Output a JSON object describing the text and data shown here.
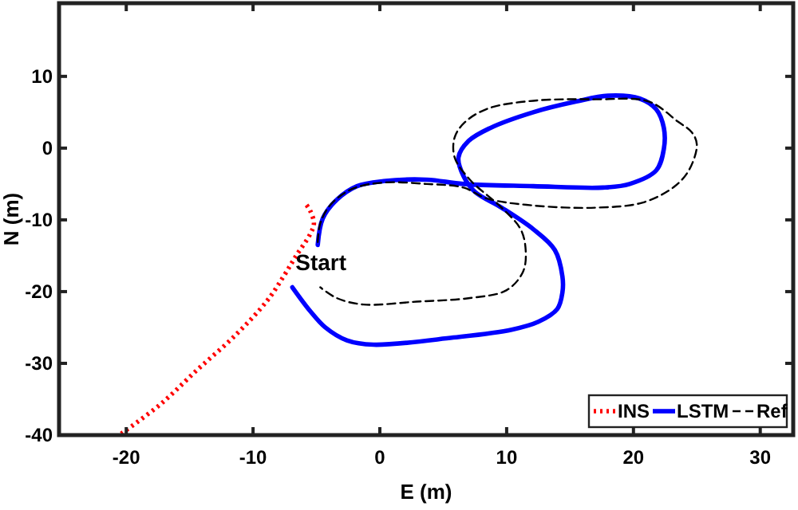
{
  "chart_data": {
    "type": "line",
    "xlabel": "E (m)",
    "ylabel": "N (m)",
    "xlim": [
      -25.3,
      32.6
    ],
    "ylim": [
      -40,
      20.2
    ],
    "xticks": [
      -20,
      -10,
      0,
      10,
      20,
      30
    ],
    "yticks": [
      -40,
      -30,
      -20,
      -10,
      0,
      10
    ],
    "grid": false,
    "legend": "bottom right",
    "annotations": [
      {
        "text": "Start",
        "x": -4.9,
        "y": -13.5
      }
    ],
    "series": [
      {
        "name": "INS",
        "color": "#ff0000",
        "line_style": "dotted",
        "x": [
          -20.4,
          -17.3,
          -14.4,
          -11.4,
          -8.9,
          -7.6,
          -6.6,
          -5.5,
          -5.2,
          -5.5,
          -5.8
        ],
        "values": [
          -39.8,
          -35.7,
          -30.9,
          -26.1,
          -21.3,
          -17.9,
          -15,
          -12,
          -10.5,
          -8.7,
          -7.9
        ]
      },
      {
        "name": "LSTM",
        "color": "#0000ff",
        "line_style": "solid",
        "x": [
          -4.9,
          -4.5,
          -3.4,
          -1.8,
          0.3,
          3.7,
          6.6,
          12.1,
          17.6,
          19.7,
          21.8,
          22.4,
          22.4,
          21.8,
          20.5,
          18,
          15.5,
          12.1,
          8.7,
          7,
          6.2,
          6.6,
          7.5,
          9.6,
          12.1,
          13.8,
          14.4,
          14.4,
          14,
          12.5,
          10.4,
          5.8,
          -0.5,
          -2.6,
          -4.3,
          -5.5,
          -6.9
        ],
        "values": [
          -13.5,
          -9.8,
          -7.2,
          -5.3,
          -4.6,
          -4.4,
          -5,
          -5.3,
          -5.5,
          -5,
          -3.1,
          -0.1,
          2.8,
          5.4,
          6.9,
          7.3,
          6.5,
          5,
          2.8,
          1,
          -1.3,
          -3.9,
          -6.1,
          -8.3,
          -11.3,
          -14.2,
          -17.9,
          -20.1,
          -22.4,
          -24.2,
          -25.3,
          -26.4,
          -27.4,
          -26.8,
          -25,
          -22.7,
          -19.4
        ]
      },
      {
        "name": "Ref",
        "color": "#000000",
        "line_style": "dashed",
        "x": [
          -4.9,
          -4.7,
          -3.9,
          -2.2,
          0.3,
          3.7,
          6.6,
          8.4,
          12.1,
          17,
          20.7,
          23.2,
          24.4,
          25,
          24.6,
          23.5,
          21.2,
          17,
          12.1,
          8.5,
          6.7,
          5.9,
          5.9,
          7.1,
          9.6,
          11.1,
          11.5,
          11.3,
          10,
          7.1,
          2.9,
          -1.3,
          -3.4,
          -4.7
        ],
        "values": [
          -13.1,
          -10.5,
          -7.9,
          -5.7,
          -4.8,
          -5,
          -5.5,
          -7,
          -8,
          -8.3,
          -7.6,
          -5.4,
          -3,
          0.5,
          2.2,
          3.7,
          6.5,
          6.8,
          6.6,
          5.5,
          3.6,
          1.5,
          -1.3,
          -4.4,
          -8.3,
          -11.3,
          -14.2,
          -17.2,
          -19.8,
          -20.9,
          -21.4,
          -21.8,
          -20.9,
          -19.4
        ]
      }
    ]
  }
}
